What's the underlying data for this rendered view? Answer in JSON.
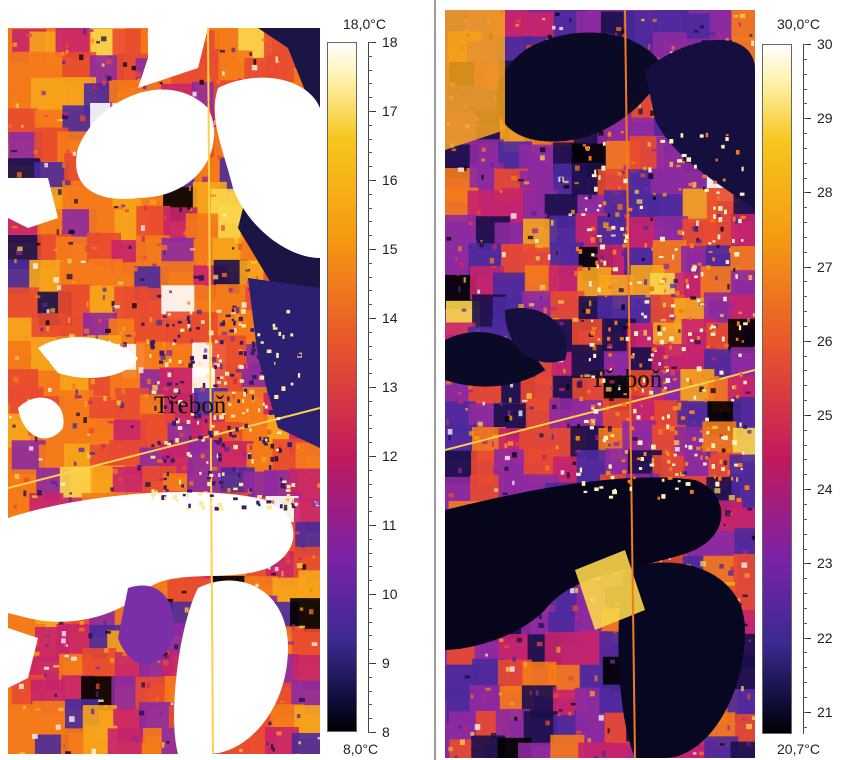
{
  "maps": [
    {
      "place_label": "Třeboň",
      "scale": {
        "max_label": "18,0°C",
        "min_label": "8,0°C",
        "min": 8,
        "max": 18,
        "ticks": [
          "18",
          "17",
          "16",
          "15",
          "14",
          "13",
          "12",
          "11",
          "10",
          "9",
          "8"
        ]
      }
    },
    {
      "place_label": "Třeboň",
      "scale": {
        "max_label": "30,0°C",
        "min_label": "20,7°C",
        "min": 20.7,
        "max": 30,
        "ticks": [
          "30",
          "29",
          "28",
          "27",
          "26",
          "25",
          "24",
          "23",
          "22",
          "21"
        ]
      }
    }
  ],
  "colors": {
    "palette": [
      "#000000",
      "#1a0f4a",
      "#4b2a9c",
      "#8e2aa0",
      "#c8246a",
      "#e84a30",
      "#f57a1a",
      "#f7a51c",
      "#f9d64a",
      "#ffffff"
    ]
  }
}
